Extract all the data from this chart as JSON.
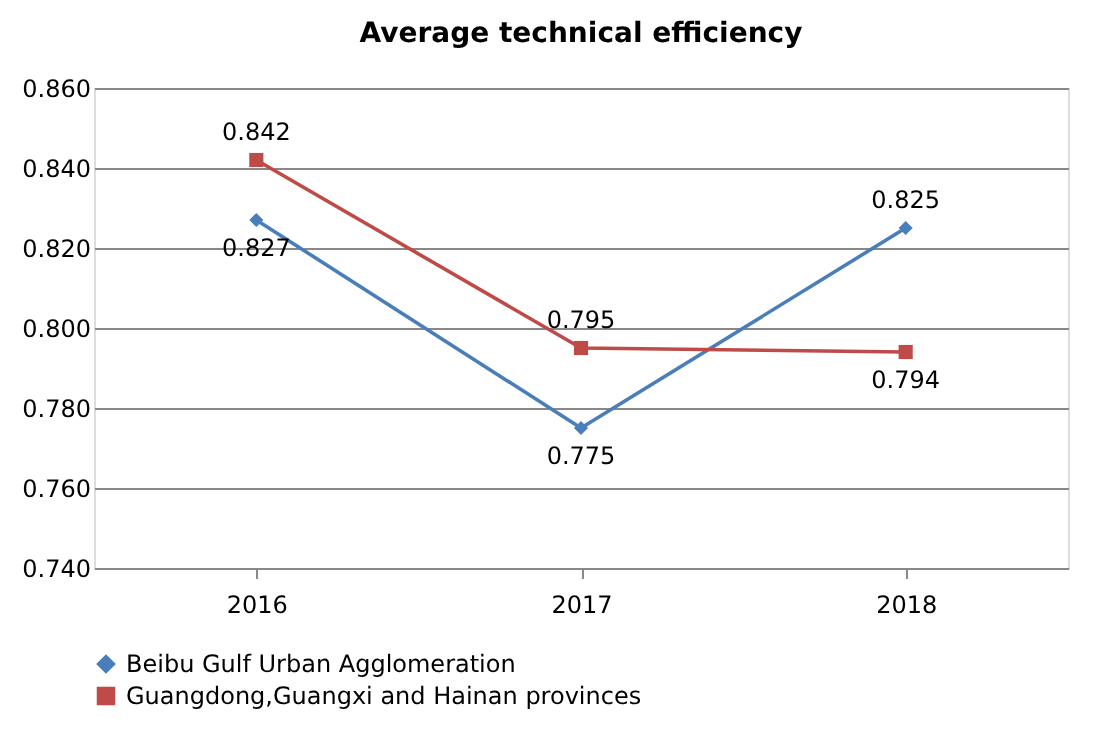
{
  "chart_data": {
    "type": "line",
    "title": "Average technical efficiency",
    "categories": [
      "2016",
      "2017",
      "2018"
    ],
    "series": [
      {
        "name": "Beibu Gulf Urban Agglomeration",
        "color": "#4a7ebb",
        "marker": "diamond",
        "values": [
          0.827,
          0.775,
          0.825
        ]
      },
      {
        "name": "Guangdong,Guangxi and Hainan provinces",
        "color": "#be4b48",
        "marker": "square",
        "values": [
          0.842,
          0.795,
          0.794
        ]
      }
    ],
    "ylim": [
      0.74,
      0.86
    ],
    "yticks": [
      {
        "value": 0.74,
        "label": "0.740"
      },
      {
        "value": 0.76,
        "label": "0.760"
      },
      {
        "value": 0.78,
        "label": "0.780"
      },
      {
        "value": 0.8,
        "label": "0.800"
      },
      {
        "value": 0.82,
        "label": "0.820"
      },
      {
        "value": 0.84,
        "label": "0.840"
      },
      {
        "value": 0.86,
        "label": "0.860"
      }
    ],
    "grid": "y",
    "legend": "bottom",
    "data_labels": true,
    "line_style": "solid"
  }
}
